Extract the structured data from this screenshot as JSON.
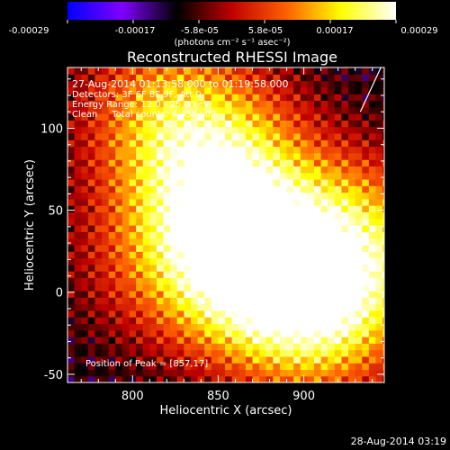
{
  "chart_data": {
    "type": "heatmap",
    "title": "Reconstructed RHESSI Image",
    "xlabel": "Heliocentric X (arcsec)",
    "ylabel": "Heliocentric Y (arcsec)",
    "xlim": [
      762,
      947
    ],
    "ylim": [
      -55,
      137
    ],
    "x_ticks": [
      800,
      850,
      900
    ],
    "y_ticks": [
      -50,
      0,
      50,
      100
    ],
    "x_tick_labels": [
      "800",
      "850",
      "900"
    ],
    "y_tick_labels": [
      "-50",
      "0",
      "50",
      "100"
    ],
    "colorbar": {
      "range": [
        -0.00029,
        0.00029
      ],
      "tick_labels": [
        "-0.00029",
        "-0.00017",
        "-5.8e-05",
        "5.8e-05",
        "0.00017",
        "0.00029"
      ],
      "unit_text": "(photons cm⁻² s⁻¹ asec⁻²)",
      "colormap": [
        "#0000ff",
        "#8000ff",
        "#000000",
        "#c00000",
        "#ff6000",
        "#ffff00",
        "#ffffff"
      ]
    },
    "annotations": {
      "time": "27-Aug-2014 01:13:58.000 to 01:19:58.000",
      "detectors": "Detectors: 3F 6F 8F 9F, Att 0",
      "energy": "Energy Range: 12.0 - 25.0 keV",
      "method": "Clean     Total counts: 4.45E+03",
      "peak": "Position of Peak = [857,17]"
    },
    "peak_position": [
      857,
      17
    ],
    "emission_centers": [
      {
        "x": 815,
        "y": 112,
        "strength": 0.55
      },
      {
        "x": 850,
        "y": 75,
        "strength": 0.75
      },
      {
        "x": 857,
        "y": 17,
        "strength": 1.0
      },
      {
        "x": 905,
        "y": -15,
        "strength": 0.85
      },
      {
        "x": 930,
        "y": 30,
        "strength": 0.7
      },
      {
        "x": 800,
        "y": 20,
        "strength": 0.25
      }
    ],
    "limb_line": {
      "x": [
        945,
        933
      ],
      "y": [
        137,
        110
      ]
    }
  },
  "footer": {
    "date": "28-Aug-2014 03:19"
  }
}
